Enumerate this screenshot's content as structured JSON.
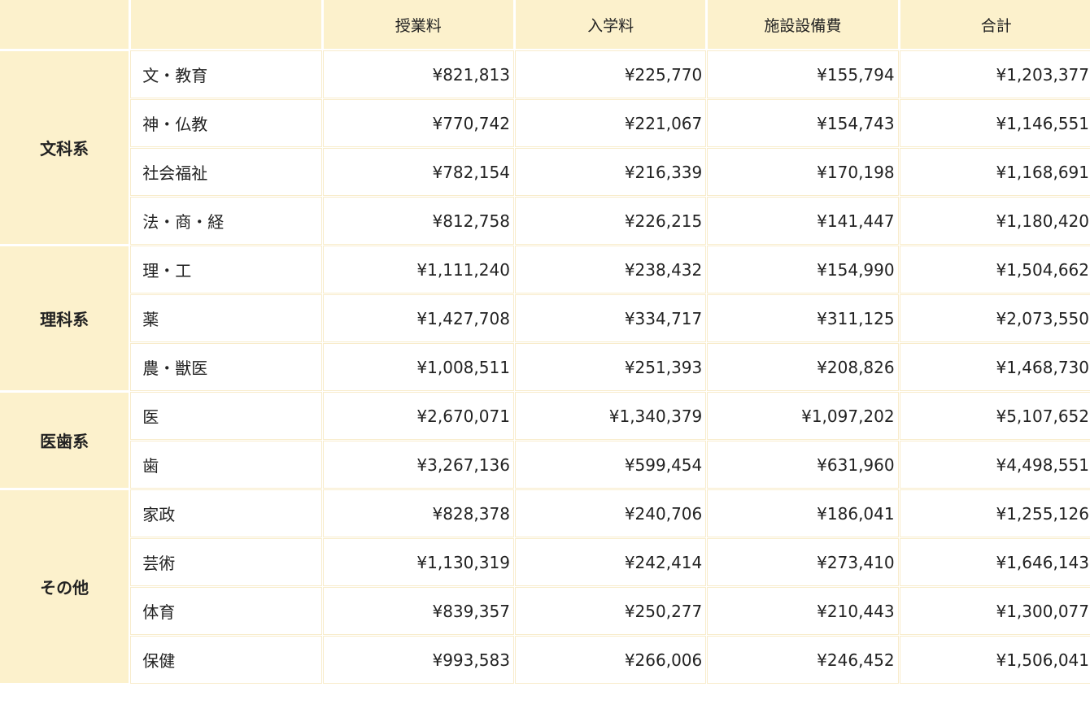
{
  "header": {
    "corner": "",
    "columns": [
      "授業料",
      "入学料",
      "施設設備費",
      "合計"
    ]
  },
  "groups": [
    {
      "name": "文科系",
      "rows": [
        {
          "label": "文・教育",
          "values": [
            "¥821,813",
            "¥225,770",
            "¥155,794",
            "¥1,203,377"
          ]
        },
        {
          "label": "神・仏教",
          "values": [
            "¥770,742",
            "¥221,067",
            "¥154,743",
            "¥1,146,551"
          ]
        },
        {
          "label": "社会福祉",
          "values": [
            "¥782,154",
            "¥216,339",
            "¥170,198",
            "¥1,168,691"
          ]
        },
        {
          "label": "法・商・経",
          "values": [
            "¥812,758",
            "¥226,215",
            "¥141,447",
            "¥1,180,420"
          ]
        }
      ]
    },
    {
      "name": "理科系",
      "rows": [
        {
          "label": "理・工",
          "values": [
            "¥1,111,240",
            "¥238,432",
            "¥154,990",
            "¥1,504,662"
          ]
        },
        {
          "label": "薬",
          "values": [
            "¥1,427,708",
            "¥334,717",
            "¥311,125",
            "¥2,073,550"
          ]
        },
        {
          "label": "農・獣医",
          "values": [
            "¥1,008,511",
            "¥251,393",
            "¥208,826",
            "¥1,468,730"
          ]
        }
      ]
    },
    {
      "name": "医歯系",
      "rows": [
        {
          "label": "医",
          "values": [
            "¥2,670,071",
            "¥1,340,379",
            "¥1,097,202",
            "¥5,107,652"
          ]
        },
        {
          "label": "歯",
          "values": [
            "¥3,267,136",
            "¥599,454",
            "¥631,960",
            "¥4,498,551"
          ]
        }
      ]
    },
    {
      "name": "その他",
      "rows": [
        {
          "label": "家政",
          "values": [
            "¥828,378",
            "¥240,706",
            "¥186,041",
            "¥1,255,126"
          ]
        },
        {
          "label": "芸術",
          "values": [
            "¥1,130,319",
            "¥242,414",
            "¥273,410",
            "¥1,646,143"
          ]
        },
        {
          "label": "体育",
          "values": [
            "¥839,357",
            "¥250,277",
            "¥210,443",
            "¥1,300,077"
          ]
        },
        {
          "label": "保健",
          "values": [
            "¥993,583",
            "¥266,006",
            "¥246,452",
            "¥1,506,041"
          ]
        }
      ]
    }
  ],
  "colors": {
    "header_bg": "#fcf1cc",
    "cell_border": "#f8eccb",
    "text": "#222222"
  }
}
